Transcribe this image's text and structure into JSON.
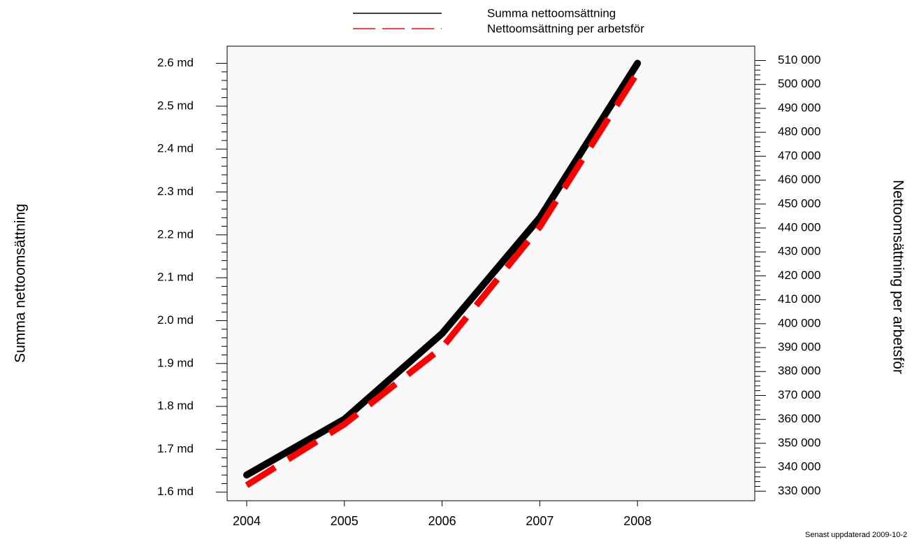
{
  "chart_data": {
    "type": "line",
    "x": [
      "2004",
      "2005",
      "2006",
      "2007",
      "2008"
    ],
    "xlim": [
      2003.8,
      2009.2
    ],
    "left_axis": {
      "label": "Summa nettoomsättning",
      "ylim": [
        1.58,
        2.64
      ],
      "ticks": [
        1.6,
        1.7,
        1.8,
        1.9,
        2.0,
        2.1,
        2.2,
        2.3,
        2.4,
        2.5,
        2.6
      ],
      "tick_labels": [
        "1.6 md",
        "1.7 md",
        "1.8 md",
        "1.9 md",
        "2.0 md",
        "2.1 md",
        "2.2 md",
        "2.3 md",
        "2.4 md",
        "2.5 md",
        "2.6 md"
      ]
    },
    "right_axis": {
      "label": "Nettoomsättning per arbetsför",
      "ylim": [
        326000,
        516000
      ],
      "ticks": [
        330000,
        340000,
        350000,
        360000,
        370000,
        380000,
        390000,
        400000,
        410000,
        420000,
        430000,
        440000,
        450000,
        460000,
        470000,
        480000,
        490000,
        500000,
        510000
      ],
      "tick_labels": [
        "330 000",
        "340 000",
        "350 000",
        "360 000",
        "370 000",
        "380 000",
        "390 000",
        "400 000",
        "410 000",
        "420 000",
        "430 000",
        "440 000",
        "450 000",
        "460 000",
        "470 000",
        "480 000",
        "490 000",
        "500 000",
        "510 000"
      ]
    },
    "series": [
      {
        "name": "Summa nettoomsättning",
        "axis": "left",
        "color": "#000000",
        "style": "solid",
        "values": [
          1.64,
          1.77,
          1.97,
          2.24,
          2.6
        ]
      },
      {
        "name": "Nettoomsättning per arbetsför",
        "axis": "right",
        "color": "#ff0000",
        "style": "dashed",
        "values": [
          332500,
          358000,
          390000,
          440500,
          505000
        ]
      }
    ],
    "legend_position": "top-center",
    "grid": false,
    "plot_background": "#f8f8f8"
  },
  "footnote": "Senast uppdaterad 2009-10-2"
}
